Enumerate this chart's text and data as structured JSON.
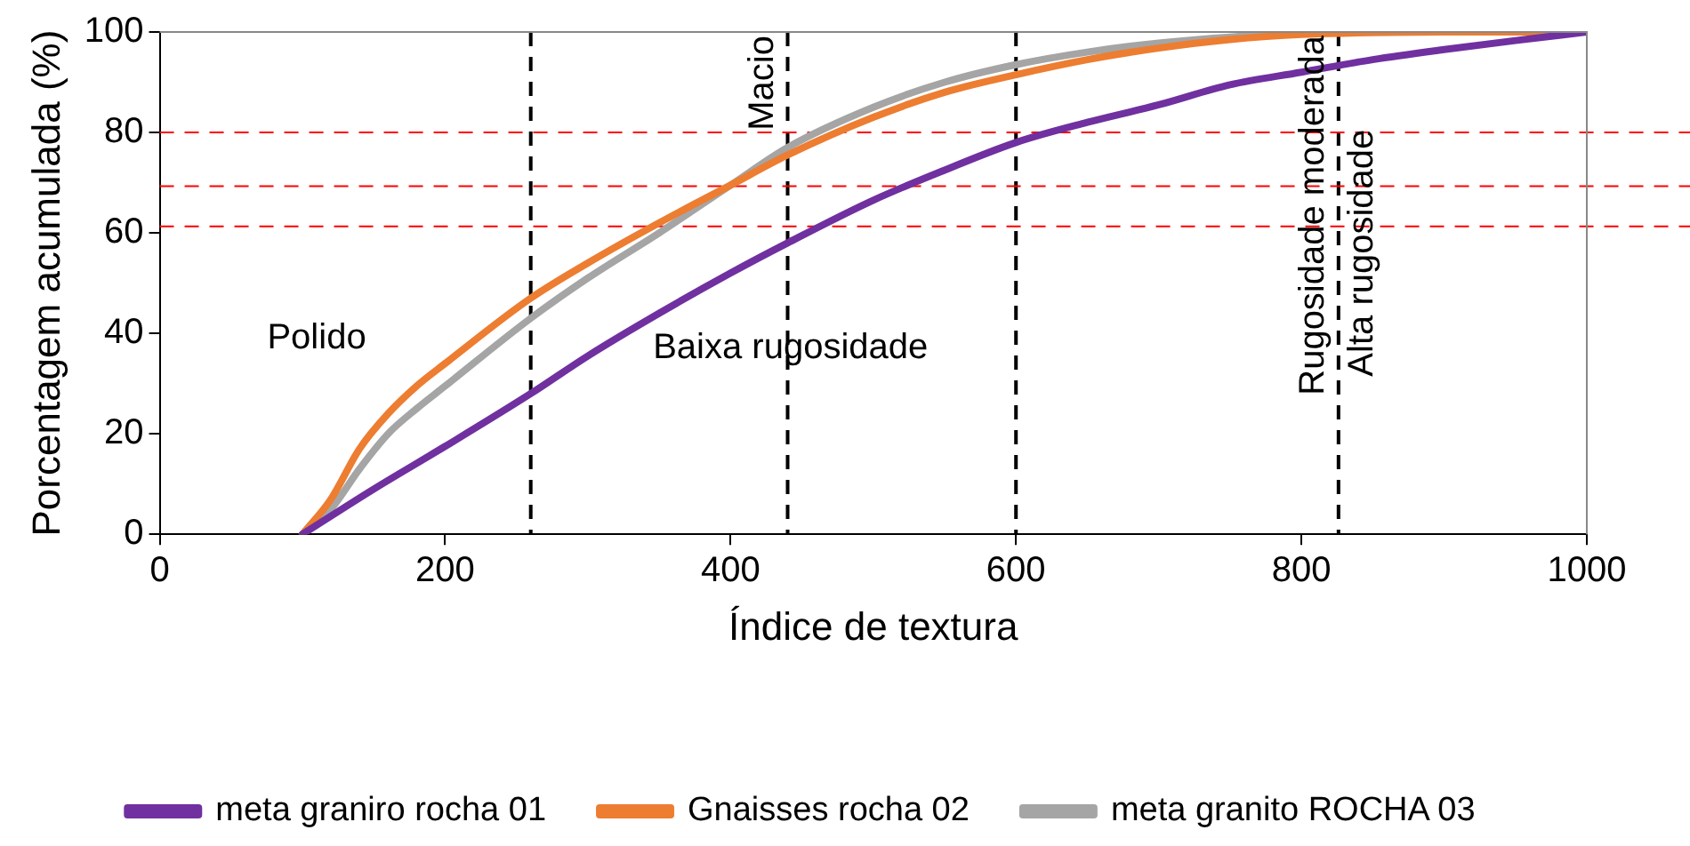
{
  "chart_data": {
    "type": "line",
    "xlabel": "Índice de textura",
    "ylabel": "Porcentagem acumulada (%)",
    "xlim": [
      0,
      1000
    ],
    "xticks": [
      0,
      200,
      400,
      600,
      800,
      1000
    ],
    "ylim": [
      0,
      100
    ],
    "yticks": [
      0,
      20,
      40,
      60,
      80,
      100
    ],
    "grid": false,
    "legend": "bottom",
    "marker": "none",
    "line_style": "solid",
    "series": [
      {
        "name": "meta graniro rocha 01",
        "color": "#7030a0",
        "x": [
          100,
          150,
          200,
          260,
          300,
          350,
          400,
          440,
          500,
          550,
          600,
          650,
          700,
          750,
          800,
          850,
          900,
          950,
          1000
        ],
        "values": [
          0,
          9,
          17.5,
          28,
          35.5,
          44,
          52,
          58,
          66.5,
          72.5,
          78,
          82,
          85.5,
          89.5,
          92,
          94.5,
          96.5,
          98.3,
          100
        ]
      },
      {
        "name": "Gnaisses rocha 02",
        "color": "#ed7d31",
        "x": [
          100,
          120,
          140,
          160,
          180,
          200,
          260,
          300,
          350,
          400,
          440,
          500,
          550,
          600,
          650,
          700,
          750,
          800,
          900,
          1000
        ],
        "values": [
          0,
          7,
          17,
          24,
          29.5,
          34,
          47,
          54,
          62,
          69.5,
          75.5,
          83,
          88,
          91.5,
          94.5,
          96.8,
          98.5,
          99.5,
          100,
          100
        ]
      },
      {
        "name": "meta granito ROCHA 03",
        "color": "#a5a5a5",
        "x": [
          100,
          120,
          140,
          160,
          180,
          200,
          260,
          300,
          350,
          400,
          440,
          500,
          550,
          600,
          650,
          700,
          750,
          800,
          900,
          1000
        ],
        "values": [
          0,
          5,
          13,
          20,
          25,
          29.5,
          43,
          51,
          60,
          69.5,
          77,
          85,
          90,
          93.5,
          96,
          97.8,
          99,
          99.7,
          100,
          100
        ]
      }
    ],
    "ref_lines": [
      {
        "axis": "x",
        "value": 260,
        "color": "#000000",
        "line_style": "dashed"
      },
      {
        "axis": "x",
        "value": 440,
        "label": "Macio",
        "color": "#000000",
        "line_style": "dashed"
      },
      {
        "axis": "x",
        "value": 600,
        "color": "#000000",
        "line_style": "dashed"
      },
      {
        "axis": "x",
        "value": 826,
        "label": "Rugosidade moderada",
        "color": "#000000",
        "line_style": "dashed"
      },
      {
        "axis": "y",
        "value": 80,
        "color": "#ff0000",
        "line_style": "dashed"
      },
      {
        "axis": "y",
        "value": 69.3,
        "color": "#ff0000",
        "line_style": "dashed"
      },
      {
        "axis": "y",
        "value": 61.3,
        "color": "#ff0000",
        "line_style": "dashed"
      }
    ],
    "annotations": [
      "Polido",
      "Baixa rugosidade",
      "Alta rugosidade"
    ]
  }
}
